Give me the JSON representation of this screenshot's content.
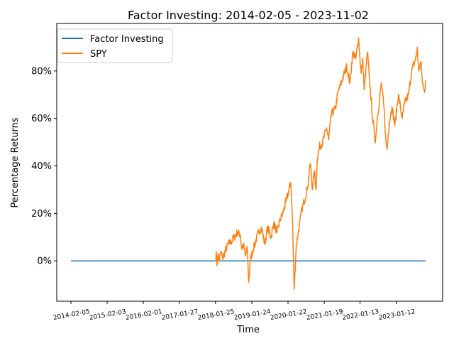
{
  "chart_data": {
    "type": "line",
    "title": "Factor Investing: 2014-02-05 - 2023-11-02",
    "xlabel": "Time",
    "ylabel": "Percentage Returns",
    "x_range": [
      "2014-02-05",
      "2023-11-02"
    ],
    "ylim": [
      -0.17,
      1.0
    ],
    "x_ticks": [
      "2014-02-05",
      "2015-02-03",
      "2016-02-01",
      "2017-01-27",
      "2018-01-25",
      "2019-01-24",
      "2020-01-22",
      "2021-01-19",
      "2022-01-13",
      "2023-01-12"
    ],
    "y_ticks": [
      0.0,
      0.2,
      0.4,
      0.6,
      0.8
    ],
    "y_tick_labels": [
      "0%",
      "20%",
      "40%",
      "60%",
      "80%"
    ],
    "grid": false,
    "legend": "top-left",
    "series": [
      {
        "name": "Factor Investing",
        "color": "#1f77b4",
        "points": [
          [
            "2014-02-05",
            0.0
          ],
          [
            "2023-11-02",
            0.0
          ]
        ]
      },
      {
        "name": "SPY",
        "color": "#ff7f0e",
        "points": [
          [
            "2018-01-25",
            0.0
          ],
          [
            "2018-02-01",
            0.04
          ],
          [
            "2018-02-08",
            -0.02
          ],
          [
            "2018-02-20",
            0.03
          ],
          [
            "2018-03-05",
            0.0
          ],
          [
            "2018-03-20",
            0.04
          ],
          [
            "2018-04-05",
            0.01
          ],
          [
            "2018-05-01",
            0.04
          ],
          [
            "2018-06-01",
            0.07
          ],
          [
            "2018-07-01",
            0.08
          ],
          [
            "2018-08-01",
            0.1
          ],
          [
            "2018-09-01",
            0.12
          ],
          [
            "2018-10-01",
            0.11
          ],
          [
            "2018-10-15",
            0.05
          ],
          [
            "2018-11-01",
            0.07
          ],
          [
            "2018-11-20",
            0.02
          ],
          [
            "2018-12-10",
            0.05
          ],
          [
            "2018-12-24",
            -0.09
          ],
          [
            "2019-01-08",
            0.0
          ],
          [
            "2019-02-01",
            0.04
          ],
          [
            "2019-03-01",
            0.08
          ],
          [
            "2019-04-01",
            0.12
          ],
          [
            "2019-05-01",
            0.14
          ],
          [
            "2019-06-03",
            0.07
          ],
          [
            "2019-07-01",
            0.14
          ],
          [
            "2019-08-05",
            0.1
          ],
          [
            "2019-09-01",
            0.16
          ],
          [
            "2019-10-03",
            0.12
          ],
          [
            "2019-11-01",
            0.17
          ],
          [
            "2019-12-01",
            0.2
          ],
          [
            "2020-01-02",
            0.25
          ],
          [
            "2020-02-19",
            0.33
          ],
          [
            "2020-03-09",
            0.15
          ],
          [
            "2020-03-23",
            -0.12
          ],
          [
            "2020-04-15",
            0.07
          ],
          [
            "2020-05-15",
            0.15
          ],
          [
            "2020-06-10",
            0.22
          ],
          [
            "2020-07-01",
            0.25
          ],
          [
            "2020-08-01",
            0.3
          ],
          [
            "2020-09-02",
            0.41
          ],
          [
            "2020-09-23",
            0.3
          ],
          [
            "2020-10-12",
            0.38
          ],
          [
            "2020-10-30",
            0.3
          ],
          [
            "2020-11-10",
            0.43
          ],
          [
            "2020-12-01",
            0.48
          ],
          [
            "2021-01-04",
            0.5
          ],
          [
            "2021-02-12",
            0.56
          ],
          [
            "2021-03-04",
            0.51
          ],
          [
            "2021-04-01",
            0.62
          ],
          [
            "2021-05-12",
            0.64
          ],
          [
            "2021-06-01",
            0.7
          ],
          [
            "2021-07-01",
            0.74
          ],
          [
            "2021-08-01",
            0.78
          ],
          [
            "2021-09-02",
            0.82
          ],
          [
            "2021-10-04",
            0.75
          ],
          [
            "2021-11-01",
            0.88
          ],
          [
            "2021-12-01",
            0.85
          ],
          [
            "2021-12-29",
            0.94
          ],
          [
            "2022-01-24",
            0.79
          ],
          [
            "2022-02-10",
            0.85
          ],
          [
            "2022-02-24",
            0.72
          ],
          [
            "2022-03-29",
            0.88
          ],
          [
            "2022-04-15",
            0.78
          ],
          [
            "2022-05-20",
            0.6
          ],
          [
            "2022-06-16",
            0.5
          ],
          [
            "2022-07-05",
            0.6
          ],
          [
            "2022-08-16",
            0.75
          ],
          [
            "2022-09-13",
            0.63
          ],
          [
            "2022-09-30",
            0.5
          ],
          [
            "2022-10-12",
            0.47
          ],
          [
            "2022-11-01",
            0.58
          ],
          [
            "2022-11-30",
            0.65
          ],
          [
            "2022-12-28",
            0.57
          ],
          [
            "2023-02-02",
            0.7
          ],
          [
            "2023-03-13",
            0.6
          ],
          [
            "2023-04-03",
            0.66
          ],
          [
            "2023-05-15",
            0.7
          ],
          [
            "2023-06-15",
            0.8
          ],
          [
            "2023-07-31",
            0.86
          ],
          [
            "2023-08-10",
            0.9
          ],
          [
            "2023-08-25",
            0.8
          ],
          [
            "2023-09-15",
            0.84
          ],
          [
            "2023-10-03",
            0.74
          ],
          [
            "2023-10-27",
            0.72
          ],
          [
            "2023-11-02",
            0.76
          ]
        ]
      }
    ]
  }
}
